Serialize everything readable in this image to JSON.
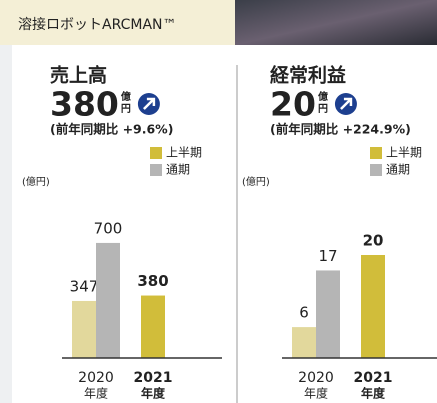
{
  "header": {
    "title": "溶接ロボットARCMAN™"
  },
  "chart_data": [
    {
      "type": "bar",
      "title": "売上高",
      "value": 380,
      "unit": [
        "億",
        "円"
      ],
      "change": "(前年同期比 +9.6%)",
      "unit_label": "(億円)",
      "categories": [
        [
          "2020",
          "年度"
        ],
        [
          "2021",
          "年度"
        ]
      ],
      "series": [
        {
          "name": "上半期",
          "color": "#d1bd3a",
          "value_colors": [
            "#e2d89c",
            "#d1bd3a"
          ],
          "values": [
            347,
            380
          ]
        },
        {
          "name": "通期",
          "color": "#b5b5b5",
          "values": [
            700,
            null
          ]
        }
      ],
      "ylim": [
        0,
        730
      ]
    },
    {
      "type": "bar",
      "title": "経常利益",
      "value": 20,
      "unit": [
        "億",
        "円"
      ],
      "change": "(前年同期比 +224.9%)",
      "unit_label": "(億円)",
      "categories": [
        [
          "2020",
          "年度"
        ],
        [
          "2021",
          "年度"
        ]
      ],
      "series": [
        {
          "name": "上半期",
          "color": "#d1bd3a",
          "value_colors": [
            "#e2d89c",
            "#d1bd3a"
          ],
          "values": [
            6,
            20
          ]
        },
        {
          "name": "通期",
          "color": "#b5b5b5",
          "values": [
            17,
            null
          ]
        }
      ],
      "ylim": [
        0,
        23.3
      ]
    }
  ]
}
